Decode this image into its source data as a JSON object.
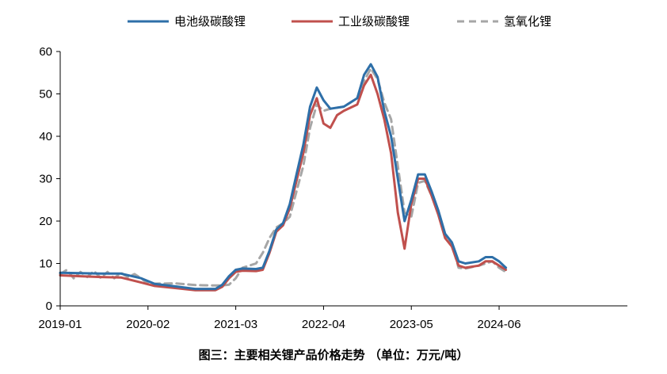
{
  "caption": "图三：主要相关锂产品价格走势 （单位：万元/吨）",
  "chart_data": {
    "type": "line",
    "title": "",
    "xlabel": "",
    "ylabel": "",
    "ylim": [
      0,
      60
    ],
    "yticks": [
      0,
      10,
      20,
      30,
      40,
      50,
      60
    ],
    "xlim": [
      "2019-01",
      "2026-01"
    ],
    "xticks": [
      "2019-01",
      "2020-02",
      "2021-03",
      "2022-04",
      "2023-05",
      "2024-06"
    ],
    "grid": false,
    "legend_position": "top",
    "series": [
      {
        "name": "电池级碳酸锂",
        "color": "#2e6fa8",
        "style": "solid",
        "points": [
          [
            "2019-01",
            7.8
          ],
          [
            "2019-04",
            7.7
          ],
          [
            "2019-07",
            7.6
          ],
          [
            "2019-10",
            7.6
          ],
          [
            "2020-01",
            6.5
          ],
          [
            "2020-03",
            5.2
          ],
          [
            "2020-06",
            4.6
          ],
          [
            "2020-09",
            4.0
          ],
          [
            "2020-12",
            4.0
          ],
          [
            "2021-01",
            5.0
          ],
          [
            "2021-02",
            7.0
          ],
          [
            "2021-03",
            8.5
          ],
          [
            "2021-04",
            8.8
          ],
          [
            "2021-06",
            8.7
          ],
          [
            "2021-07",
            9.0
          ],
          [
            "2021-08",
            13.0
          ],
          [
            "2021-09",
            18.0
          ],
          [
            "2021-10",
            19.5
          ],
          [
            "2021-11",
            24.0
          ],
          [
            "2021-12",
            31.0
          ],
          [
            "2022-01",
            38.0
          ],
          [
            "2022-02",
            47.0
          ],
          [
            "2022-03",
            51.5
          ],
          [
            "2022-04",
            48.5
          ],
          [
            "2022-05",
            46.5
          ],
          [
            "2022-07",
            47.0
          ],
          [
            "2022-09",
            49.0
          ],
          [
            "2022-10",
            54.5
          ],
          [
            "2022-11",
            57.0
          ],
          [
            "2022-12",
            54.0
          ],
          [
            "2023-01",
            46.0
          ],
          [
            "2023-02",
            40.0
          ],
          [
            "2023-03",
            30.0
          ],
          [
            "2023-04",
            20.0
          ],
          [
            "2023-05",
            25.0
          ],
          [
            "2023-06",
            31.0
          ],
          [
            "2023-07",
            31.0
          ],
          [
            "2023-08",
            27.0
          ],
          [
            "2023-09",
            22.5
          ],
          [
            "2023-10",
            17.0
          ],
          [
            "2023-11",
            15.0
          ],
          [
            "2023-12",
            10.5
          ],
          [
            "2024-01",
            10.0
          ],
          [
            "2024-03",
            10.5
          ],
          [
            "2024-04",
            11.5
          ],
          [
            "2024-05",
            11.5
          ],
          [
            "2024-06",
            10.5
          ],
          [
            "2024-07",
            9.0
          ]
        ]
      },
      {
        "name": "工业级碳酸锂",
        "color": "#c0504d",
        "style": "solid",
        "points": [
          [
            "2019-01",
            7.2
          ],
          [
            "2019-04",
            7.0
          ],
          [
            "2019-07",
            6.8
          ],
          [
            "2019-10",
            6.7
          ],
          [
            "2020-01",
            5.5
          ],
          [
            "2020-03",
            4.7
          ],
          [
            "2020-06",
            4.2
          ],
          [
            "2020-09",
            3.7
          ],
          [
            "2020-12",
            3.7
          ],
          [
            "2021-01",
            4.5
          ],
          [
            "2021-02",
            6.5
          ],
          [
            "2021-03",
            8.0
          ],
          [
            "2021-04",
            8.3
          ],
          [
            "2021-06",
            8.2
          ],
          [
            "2021-07",
            8.5
          ],
          [
            "2021-08",
            12.5
          ],
          [
            "2021-09",
            17.5
          ],
          [
            "2021-10",
            19.0
          ],
          [
            "2021-11",
            23.0
          ],
          [
            "2021-12",
            29.5
          ],
          [
            "2022-01",
            36.0
          ],
          [
            "2022-02",
            45.0
          ],
          [
            "2022-03",
            49.0
          ],
          [
            "2022-04",
            43.0
          ],
          [
            "2022-05",
            42.0
          ],
          [
            "2022-06",
            45.0
          ],
          [
            "2022-07",
            46.0
          ],
          [
            "2022-09",
            47.5
          ],
          [
            "2022-10",
            52.0
          ],
          [
            "2022-11",
            54.5
          ],
          [
            "2022-12",
            50.0
          ],
          [
            "2023-01",
            44.0
          ],
          [
            "2023-02",
            36.0
          ],
          [
            "2023-03",
            22.0
          ],
          [
            "2023-04",
            13.5
          ],
          [
            "2023-05",
            24.0
          ],
          [
            "2023-06",
            30.0
          ],
          [
            "2023-07",
            30.0
          ],
          [
            "2023-08",
            26.0
          ],
          [
            "2023-09",
            21.5
          ],
          [
            "2023-10",
            16.0
          ],
          [
            "2023-11",
            14.0
          ],
          [
            "2023-12",
            9.5
          ],
          [
            "2024-01",
            9.0
          ],
          [
            "2024-03",
            9.5
          ],
          [
            "2024-04",
            10.5
          ],
          [
            "2024-05",
            10.5
          ],
          [
            "2024-06",
            9.5
          ],
          [
            "2024-07",
            8.5
          ]
        ]
      },
      {
        "name": "氢氧化锂",
        "color": "#a6a6a6",
        "style": "dashed",
        "points": [
          [
            "2019-01",
            7.5
          ],
          [
            "2019-02",
            8.5
          ],
          [
            "2019-03",
            6.5
          ],
          [
            "2019-04",
            8.0
          ],
          [
            "2019-05",
            6.8
          ],
          [
            "2019-06",
            8.2
          ],
          [
            "2019-07",
            6.6
          ],
          [
            "2019-08",
            8.0
          ],
          [
            "2019-09",
            6.5
          ],
          [
            "2019-10",
            7.8
          ],
          [
            "2019-11",
            6.8
          ],
          [
            "2019-12",
            7.5
          ],
          [
            "2020-01",
            6.5
          ],
          [
            "2020-02",
            5.2
          ],
          [
            "2020-06",
            5.3
          ],
          [
            "2020-09",
            4.9
          ],
          [
            "2020-12",
            4.8
          ],
          [
            "2021-01",
            4.8
          ],
          [
            "2021-02",
            5.0
          ],
          [
            "2021-03",
            6.5
          ],
          [
            "2021-04",
            9.0
          ],
          [
            "2021-06",
            10.0
          ],
          [
            "2021-07",
            12.5
          ],
          [
            "2021-08",
            16.0
          ],
          [
            "2021-09",
            18.5
          ],
          [
            "2021-10",
            19.5
          ],
          [
            "2021-11",
            21.0
          ],
          [
            "2021-12",
            27.0
          ],
          [
            "2022-01",
            33.0
          ],
          [
            "2022-02",
            42.0
          ],
          [
            "2022-03",
            47.5
          ],
          [
            "2022-04",
            46.0
          ],
          [
            "2022-05",
            46.5
          ],
          [
            "2022-07",
            47.0
          ],
          [
            "2022-09",
            49.0
          ],
          [
            "2022-10",
            53.0
          ],
          [
            "2022-11",
            56.0
          ],
          [
            "2022-12",
            53.5
          ],
          [
            "2023-01",
            48.0
          ],
          [
            "2023-02",
            44.0
          ],
          [
            "2023-03",
            33.0
          ],
          [
            "2023-04",
            22.0
          ],
          [
            "2023-05",
            21.0
          ],
          [
            "2023-06",
            29.0
          ],
          [
            "2023-07",
            29.5
          ],
          [
            "2023-08",
            26.0
          ],
          [
            "2023-09",
            22.0
          ],
          [
            "2023-10",
            16.5
          ],
          [
            "2023-11",
            14.5
          ],
          [
            "2023-12",
            9.0
          ],
          [
            "2024-01",
            8.8
          ],
          [
            "2024-03",
            9.5
          ],
          [
            "2024-04",
            10.0
          ],
          [
            "2024-05",
            10.5
          ],
          [
            "2024-06",
            9.0
          ],
          [
            "2024-07",
            8.0
          ]
        ]
      }
    ]
  }
}
